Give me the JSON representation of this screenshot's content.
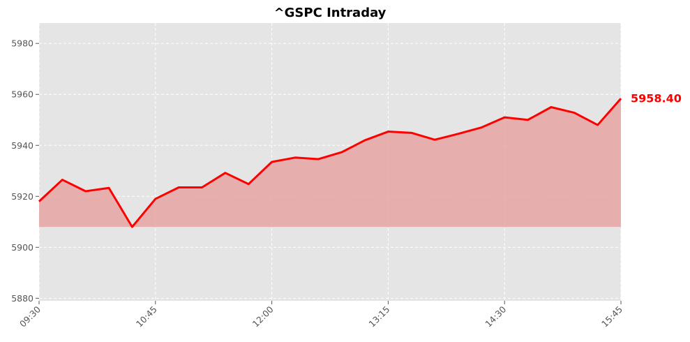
{
  "chart_data": {
    "type": "area",
    "title": "^GSPC Intraday",
    "xlabel": "",
    "ylabel": "",
    "x": [
      "09:30",
      "09:45",
      "10:00",
      "10:15",
      "10:30",
      "10:45",
      "11:00",
      "11:15",
      "11:30",
      "11:45",
      "12:00",
      "12:15",
      "12:30",
      "12:45",
      "13:00",
      "13:15",
      "13:30",
      "13:45",
      "14:00",
      "14:15",
      "14:30",
      "14:45",
      "15:00",
      "15:15",
      "15:30",
      "15:45"
    ],
    "series": [
      {
        "values": [
          5918.0,
          5926.5,
          5922.0,
          5923.3,
          5908.0,
          5919.0,
          5923.5,
          5923.5,
          5929.2,
          5924.8,
          5933.5,
          5935.2,
          5934.6,
          5937.3,
          5942.0,
          5945.4,
          5944.9,
          5942.2,
          5944.5,
          5947.0,
          5951.0,
          5950.0,
          5955.0,
          5952.8,
          5948.0,
          5958.4
        ]
      }
    ],
    "fill_baseline": 5908.0,
    "x_ticks": [
      "09:30",
      "10:45",
      "12:00",
      "13:15",
      "14:30",
      "15:45"
    ],
    "y_ticks": [
      5880,
      5900,
      5920,
      5940,
      5960,
      5980
    ],
    "ylim": [
      5879,
      5988
    ],
    "last_value_label": "5958.40",
    "grid": true,
    "legend": "none",
    "colors": {
      "line": "#ff0000",
      "fill": "#e8a4a4",
      "plot_background": "#e5e5e5",
      "grid": "#ffffff",
      "last_value_label": "#ff0000"
    }
  }
}
